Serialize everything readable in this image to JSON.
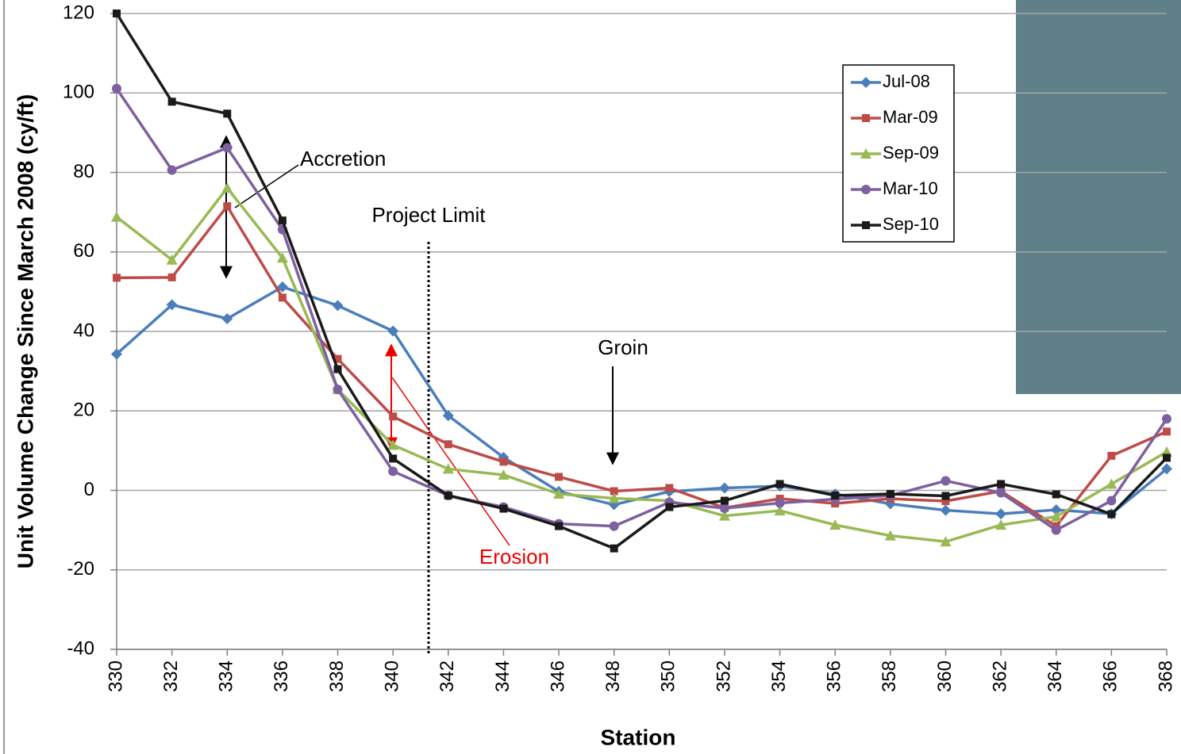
{
  "chart_data": {
    "type": "line",
    "x_label": "Station",
    "y_label": "Unit Volume Change Since March 2008 (cy/ft)",
    "x": [
      330,
      332,
      334,
      336,
      338,
      340,
      342,
      344,
      346,
      348,
      350,
      352,
      354,
      356,
      358,
      360,
      362,
      364,
      366,
      368
    ],
    "xlim": [
      330,
      368
    ],
    "xticks": [
      330,
      332,
      334,
      336,
      338,
      340,
      342,
      344,
      346,
      348,
      350,
      352,
      354,
      356,
      358,
      360,
      362,
      364,
      366,
      368
    ],
    "ylim": [
      -40,
      120
    ],
    "yticks": [
      -40,
      -20,
      0,
      20,
      40,
      60,
      80,
      100,
      120
    ],
    "grid": true,
    "legend": "upper-right",
    "series": [
      {
        "name": "Jul-08",
        "color": "#4a7ebb",
        "marker": "diamond",
        "values": [
          34.3,
          46.7,
          43.2,
          51.2,
          46.5,
          40.1,
          18.8,
          8.3,
          -0.3,
          -3.6,
          -0.3,
          0.6,
          1.1,
          -0.9,
          -3.4,
          -5.0,
          -5.9,
          -4.9,
          -5.9,
          5.4
        ]
      },
      {
        "name": "Mar-09",
        "color": "#be4b48",
        "marker": "square",
        "values": [
          53.5,
          53.6,
          71.5,
          48.5,
          33.1,
          18.6,
          11.6,
          7.2,
          3.4,
          -0.2,
          0.6,
          -4.4,
          -2.1,
          -3.3,
          -2.1,
          -2.7,
          -0.2,
          -9.0,
          8.7,
          14.8
        ]
      },
      {
        "name": "Sep-09",
        "color": "#98b954",
        "marker": "triangle",
        "values": [
          68.8,
          58.0,
          76.1,
          58.5,
          25.4,
          11.4,
          5.4,
          3.9,
          -0.9,
          -2.0,
          -2.6,
          -6.4,
          -5.1,
          -8.7,
          -11.4,
          -12.9,
          -8.7,
          -6.6,
          1.6,
          9.7
        ]
      },
      {
        "name": "Mar-10",
        "color": "#7d60a0",
        "marker": "circle",
        "values": [
          101.1,
          80.6,
          86.2,
          65.6,
          25.4,
          4.8,
          -1.3,
          -4.2,
          -8.4,
          -9.0,
          -3.0,
          -4.5,
          -3.2,
          -2.2,
          -1.3,
          2.4,
          -0.6,
          -10.0,
          -2.6,
          18.0
        ]
      },
      {
        "name": "Sep-10",
        "color": "#1a1a1a",
        "marker": "square",
        "values": [
          120,
          97.8,
          94.8,
          67.9,
          30.5,
          8.0,
          -1.3,
          -4.6,
          -9.0,
          -14.6,
          -4.2,
          -2.6,
          1.6,
          -1.3,
          -0.9,
          -1.4,
          1.6,
          -1.0,
          -6.0,
          8.2
        ]
      }
    ],
    "annotations": {
      "accretion": "Accretion",
      "project_limit": "Project Limit",
      "groin": "Groin",
      "erosion": "Erosion"
    }
  }
}
